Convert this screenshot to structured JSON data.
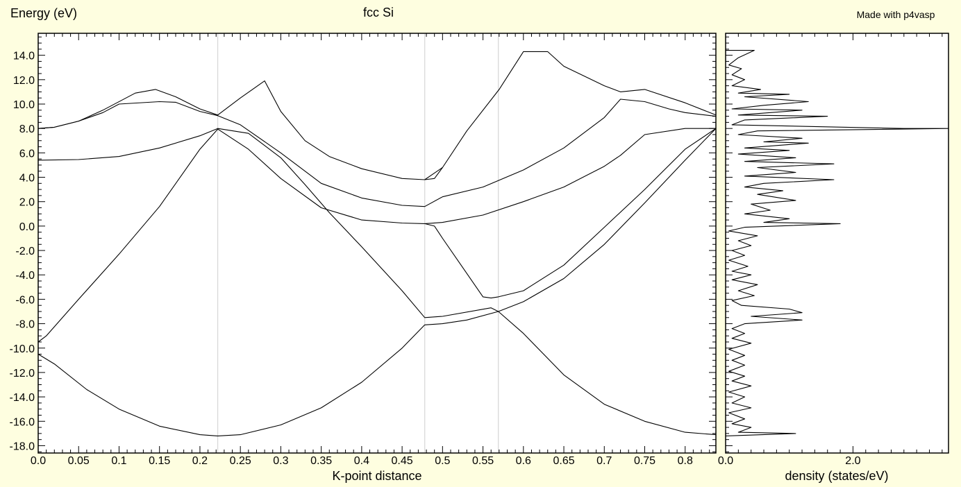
{
  "colors": {
    "background": "#fefee0",
    "plot_bg": "#ffffff",
    "curve": "#000000",
    "kpoint_line": "#d6d6d6"
  },
  "chart_data": [
    {
      "type": "line",
      "title": "fcc Si",
      "ylabel": "Energy (eV)",
      "xlabel": "K-point distance",
      "credit": "Made with p4vasp",
      "xlim": [
        0.0,
        0.838
      ],
      "ylim": [
        -18.6,
        15.8
      ],
      "x_ticks": [
        "0.0",
        "0.05",
        "0.1",
        "0.15",
        "0.2",
        "0.25",
        "0.3",
        "0.35",
        "0.4",
        "0.45",
        "0.5",
        "0.55",
        "0.6",
        "0.65",
        "0.7",
        "0.75",
        "0.8"
      ],
      "y_ticks": [
        "14.0",
        "12.0",
        "10.0",
        "8.0",
        "6.0",
        "4.0",
        "2.0",
        "0.0",
        "-2.0",
        "-4.0",
        "-6.0",
        "-8.0",
        "-10.0",
        "-12.0",
        "-14.0",
        "-16.0",
        "-18.0"
      ],
      "kpoint_lines": [
        0.222,
        0.478,
        0.569
      ],
      "grid": false,
      "series": [
        {
          "points": [
            [
              0,
              -10.5
            ],
            [
              0.02,
              -11.3
            ],
            [
              0.06,
              -13.4
            ],
            [
              0.1,
              -15.0
            ],
            [
              0.15,
              -16.4
            ],
            [
              0.2,
              -17.1
            ],
            [
              0.222,
              -17.2
            ],
            [
              0.25,
              -17.1
            ],
            [
              0.3,
              -16.3
            ],
            [
              0.35,
              -14.9
            ],
            [
              0.4,
              -12.8
            ],
            [
              0.45,
              -10.0
            ],
            [
              0.478,
              -8.1
            ],
            [
              0.5,
              -8.0
            ],
            [
              0.53,
              -7.7
            ],
            [
              0.569,
              -7.0
            ],
            [
              0.6,
              -8.8
            ],
            [
              0.65,
              -12.2
            ],
            [
              0.7,
              -14.6
            ],
            [
              0.75,
              -16.0
            ],
            [
              0.8,
              -16.9
            ],
            [
              0.838,
              -17.1
            ]
          ]
        },
        {
          "points": [
            [
              0,
              -9.5
            ],
            [
              0.01,
              -9.0
            ],
            [
              0.05,
              -6.0
            ],
            [
              0.1,
              -2.3
            ],
            [
              0.15,
              1.6
            ],
            [
              0.2,
              6.3
            ],
            [
              0.222,
              7.95
            ],
            [
              0.26,
              6.3
            ],
            [
              0.3,
              3.9
            ],
            [
              0.35,
              1.5
            ],
            [
              0.4,
              0.5
            ],
            [
              0.45,
              0.25
            ],
            [
              0.478,
              0.2
            ],
            [
              0.5,
              0.3
            ],
            [
              0.55,
              0.9
            ],
            [
              0.6,
              2.0
            ],
            [
              0.65,
              3.2
            ],
            [
              0.7,
              4.9
            ],
            [
              0.72,
              5.8
            ],
            [
              0.75,
              7.5
            ],
            [
              0.8,
              8.0
            ],
            [
              0.838,
              8.0
            ]
          ]
        },
        {
          "points": [
            [
              0,
              5.4
            ],
            [
              0.05,
              5.45
            ],
            [
              0.1,
              5.7
            ],
            [
              0.15,
              6.4
            ],
            [
              0.2,
              7.4
            ],
            [
              0.222,
              8.0
            ],
            [
              0.26,
              7.6
            ],
            [
              0.3,
              5.6
            ],
            [
              0.33,
              3.4
            ],
            [
              0.36,
              1.1
            ],
            [
              0.4,
              -1.7
            ],
            [
              0.45,
              -5.3
            ],
            [
              0.478,
              -7.5
            ],
            [
              0.5,
              -7.4
            ],
            [
              0.56,
              -6.7
            ],
            [
              0.569,
              -7.0
            ],
            [
              0.6,
              -6.2
            ],
            [
              0.65,
              -4.3
            ],
            [
              0.7,
              -1.5
            ],
            [
              0.75,
              1.9
            ],
            [
              0.8,
              5.4
            ],
            [
              0.838,
              8.0
            ]
          ]
        },
        {
          "points": [
            [
              0,
              8.0
            ],
            [
              0.02,
              8.1
            ],
            [
              0.05,
              8.6
            ],
            [
              0.08,
              9.3
            ],
            [
              0.1,
              10.0
            ],
            [
              0.15,
              10.2
            ],
            [
              0.17,
              10.15
            ],
            [
              0.2,
              9.4
            ],
            [
              0.222,
              9.05
            ],
            [
              0.25,
              8.3
            ],
            [
              0.3,
              6.0
            ],
            [
              0.35,
              3.5
            ],
            [
              0.4,
              2.3
            ],
            [
              0.45,
              1.7
            ],
            [
              0.478,
              1.6
            ],
            [
              0.5,
              2.4
            ],
            [
              0.55,
              3.2
            ],
            [
              0.6,
              4.6
            ],
            [
              0.65,
              6.4
            ],
            [
              0.7,
              8.9
            ],
            [
              0.72,
              10.4
            ],
            [
              0.75,
              10.2
            ],
            [
              0.78,
              9.6
            ],
            [
              0.8,
              9.3
            ],
            [
              0.838,
              9.0
            ]
          ]
        },
        {
          "points": [
            [
              0,
              8.0
            ],
            [
              0.02,
              8.1
            ],
            [
              0.05,
              8.6
            ],
            [
              0.08,
              9.5
            ],
            [
              0.12,
              10.9
            ],
            [
              0.145,
              11.2
            ],
            [
              0.17,
              10.6
            ],
            [
              0.2,
              9.6
            ],
            [
              0.222,
              9.1
            ],
            [
              0.25,
              10.5
            ],
            [
              0.28,
              11.9
            ],
            [
              0.3,
              9.4
            ],
            [
              0.33,
              7.0
            ],
            [
              0.36,
              5.7
            ],
            [
              0.4,
              4.7
            ],
            [
              0.45,
              3.9
            ],
            [
              0.478,
              3.8
            ],
            [
              0.5,
              4.8
            ],
            [
              0.53,
              7.8
            ],
            [
              0.57,
              11.2
            ],
            [
              0.6,
              14.3
            ],
            [
              0.63,
              14.3
            ],
            [
              0.65,
              13.1
            ],
            [
              0.7,
              11.5
            ],
            [
              0.72,
              11.0
            ],
            [
              0.75,
              11.2
            ],
            [
              0.8,
              10.1
            ],
            [
              0.838,
              9.1
            ]
          ]
        },
        {
          "points": [
            [
              0.478,
              3.8
            ],
            [
              0.49,
              3.9
            ],
            [
              0.5,
              4.8
            ]
          ]
        },
        {
          "points": [
            [
              0.478,
              0.2
            ],
            [
              0.49,
              0.0
            ],
            [
              0.5,
              -1.0
            ],
            [
              0.55,
              -5.8
            ],
            [
              0.56,
              -5.9
            ],
            [
              0.569,
              -5.8
            ],
            [
              0.6,
              -5.3
            ],
            [
              0.65,
              -3.2
            ],
            [
              0.7,
              -0.1
            ],
            [
              0.75,
              3.0
            ],
            [
              0.8,
              6.3
            ],
            [
              0.838,
              8.0
            ]
          ]
        }
      ]
    },
    {
      "type": "line",
      "xlabel": "density (states/eV)",
      "xlim": [
        0.0,
        3.5
      ],
      "ylim": [
        -18.6,
        15.8
      ],
      "x_ticks": [
        "0.0",
        "2.0"
      ],
      "series": [
        {
          "points": [
            [
              0,
              14.4
            ],
            [
              0.45,
              14.4
            ],
            [
              0.2,
              13.8
            ],
            [
              0.05,
              13.2
            ],
            [
              0.25,
              12.9
            ],
            [
              0.1,
              12.4
            ],
            [
              0.3,
              12.0
            ],
            [
              0.1,
              11.5
            ],
            [
              0.55,
              11.2
            ],
            [
              0.2,
              10.9
            ],
            [
              1.0,
              10.8
            ],
            [
              0.3,
              10.6
            ],
            [
              1.3,
              10.2
            ],
            [
              0.6,
              9.9
            ],
            [
              0.1,
              9.6
            ],
            [
              1.2,
              9.5
            ],
            [
              0.2,
              9.1
            ],
            [
              1.6,
              9.0
            ],
            [
              0.3,
              8.7
            ],
            [
              0.1,
              8.3
            ],
            [
              2.8,
              8.0
            ],
            [
              3.5,
              8.0
            ],
            [
              0.5,
              7.8
            ],
            [
              0.2,
              7.5
            ],
            [
              1.2,
              7.2
            ],
            [
              0.6,
              6.9
            ],
            [
              1.3,
              6.8
            ],
            [
              0.3,
              6.4
            ],
            [
              1.0,
              6.2
            ],
            [
              0.2,
              5.9
            ],
            [
              1.1,
              5.6
            ],
            [
              0.3,
              5.3
            ],
            [
              1.7,
              5.1
            ],
            [
              0.5,
              4.8
            ],
            [
              1.1,
              4.4
            ],
            [
              0.3,
              4.1
            ],
            [
              1.7,
              3.8
            ],
            [
              0.6,
              3.5
            ],
            [
              0.3,
              3.2
            ],
            [
              0.9,
              2.9
            ],
            [
              0.5,
              2.6
            ],
            [
              1.1,
              2.1
            ],
            [
              0.4,
              1.8
            ],
            [
              0.7,
              1.3
            ],
            [
              0.3,
              1.0
            ],
            [
              1.0,
              0.6
            ],
            [
              0.6,
              0.3
            ],
            [
              1.8,
              0.2
            ],
            [
              0.3,
              -0.1
            ],
            [
              0.05,
              -0.4
            ],
            [
              0.5,
              -0.8
            ],
            [
              0.2,
              -1.2
            ],
            [
              0.4,
              -1.6
            ],
            [
              0.1,
              -2.0
            ],
            [
              0.3,
              -2.4
            ],
            [
              0.05,
              -2.8
            ],
            [
              0.35,
              -3.3
            ],
            [
              0.1,
              -3.7
            ],
            [
              0.4,
              -4.0
            ],
            [
              0.1,
              -4.4
            ],
            [
              0.5,
              -4.8
            ],
            [
              0.2,
              -5.3
            ],
            [
              0.45,
              -5.7
            ],
            [
              0.1,
              -6.1
            ],
            [
              0.25,
              -6.5
            ],
            [
              1.0,
              -6.8
            ],
            [
              1.2,
              -7.1
            ],
            [
              0.4,
              -7.4
            ],
            [
              1.2,
              -7.7
            ],
            [
              0.3,
              -8.0
            ],
            [
              0.1,
              -8.4
            ],
            [
              0.3,
              -8.8
            ],
            [
              0.1,
              -9.2
            ],
            [
              0.4,
              -9.6
            ],
            [
              0.05,
              -10.1
            ],
            [
              0.3,
              -10.6
            ],
            [
              0.1,
              -11.0
            ],
            [
              0.3,
              -11.4
            ],
            [
              0.05,
              -11.9
            ],
            [
              0.3,
              -12.3
            ],
            [
              0.1,
              -12.7
            ],
            [
              0.4,
              -13.1
            ],
            [
              0.05,
              -13.6
            ],
            [
              0.3,
              -14.0
            ],
            [
              0.1,
              -14.5
            ],
            [
              0.4,
              -14.9
            ],
            [
              0.05,
              -15.3
            ],
            [
              0.3,
              -15.8
            ],
            [
              0.1,
              -16.2
            ],
            [
              0.4,
              -16.5
            ],
            [
              0.2,
              -16.9
            ],
            [
              1.1,
              -17.0
            ],
            [
              0,
              -17.2
            ]
          ]
        }
      ]
    }
  ]
}
